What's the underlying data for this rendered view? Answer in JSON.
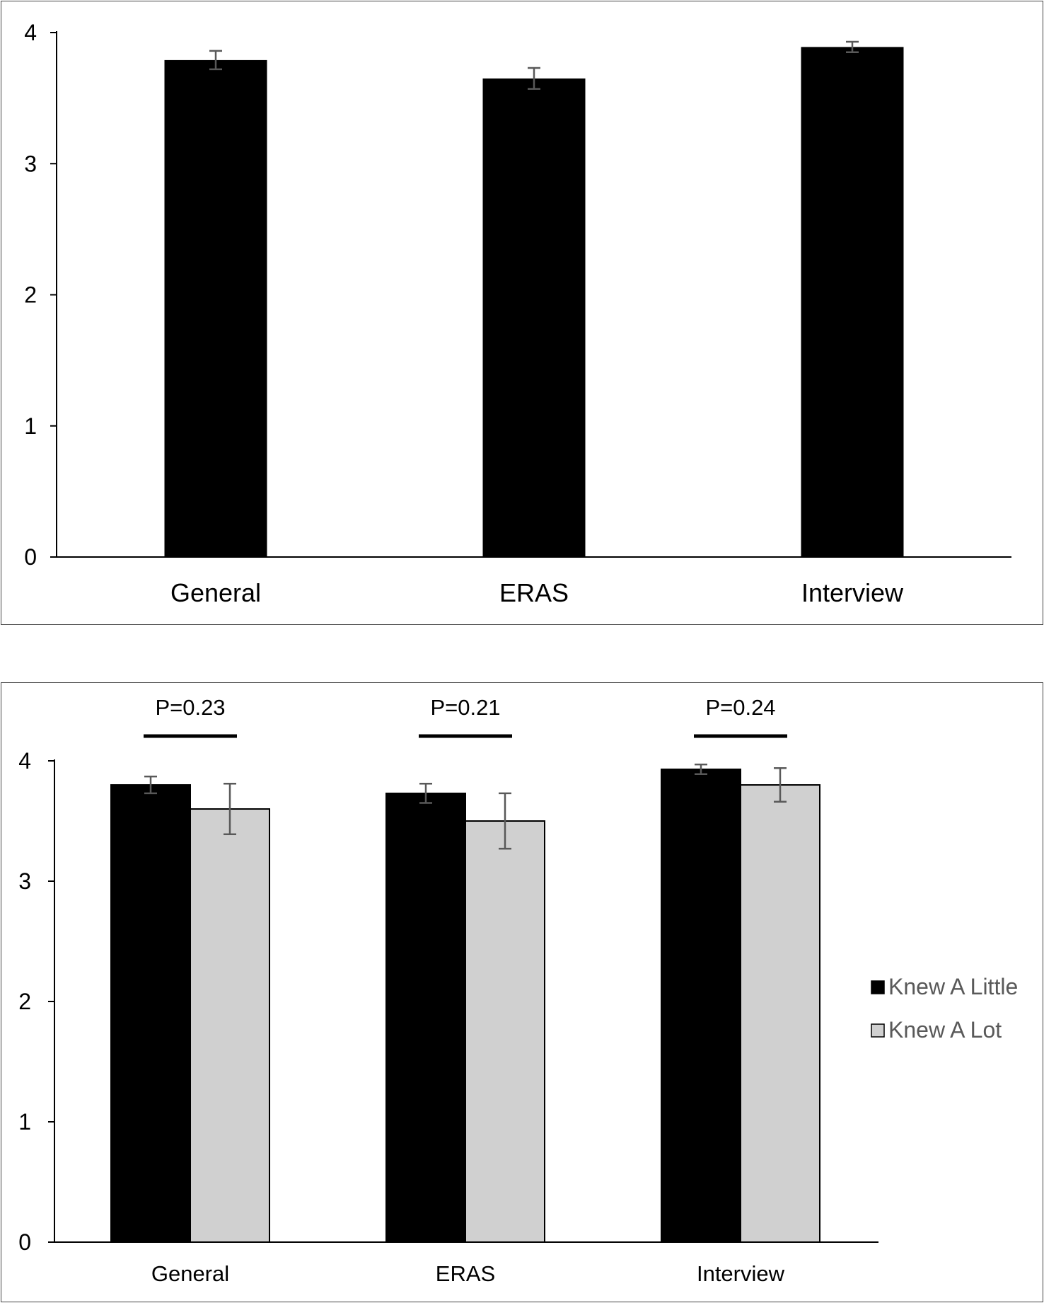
{
  "colors": {
    "knew_a_little": "#000000",
    "knew_a_lot": "#d0d0d0",
    "error_bar": "#595959",
    "axis": "#000000"
  },
  "chart_data": [
    {
      "type": "bar",
      "categories": [
        "General",
        "ERAS",
        "Interview"
      ],
      "series": [
        {
          "values": [
            3.79,
            3.65,
            3.89
          ],
          "error": [
            0.07,
            0.08,
            0.04
          ]
        }
      ],
      "ylim": [
        0,
        4
      ],
      "yticks": [
        "0",
        "1",
        "2",
        "3",
        "4"
      ],
      "grid": false,
      "legend": "none"
    },
    {
      "type": "bar",
      "categories": [
        "General",
        "ERAS",
        "Interview"
      ],
      "series": [
        {
          "name": "Knew A Little",
          "values": [
            3.8,
            3.73,
            3.93
          ],
          "error": [
            0.07,
            0.08,
            0.04
          ]
        },
        {
          "name": "Knew A Lot",
          "values": [
            3.6,
            3.5,
            3.8
          ],
          "error": [
            0.21,
            0.23,
            0.14
          ]
        }
      ],
      "annotations": [
        "P=0.23",
        "P=0.21",
        "P=0.24"
      ],
      "ylim": [
        0,
        4
      ],
      "yticks": [
        "0",
        "1",
        "2",
        "3",
        "4"
      ],
      "grid": false,
      "legend": "right"
    }
  ]
}
